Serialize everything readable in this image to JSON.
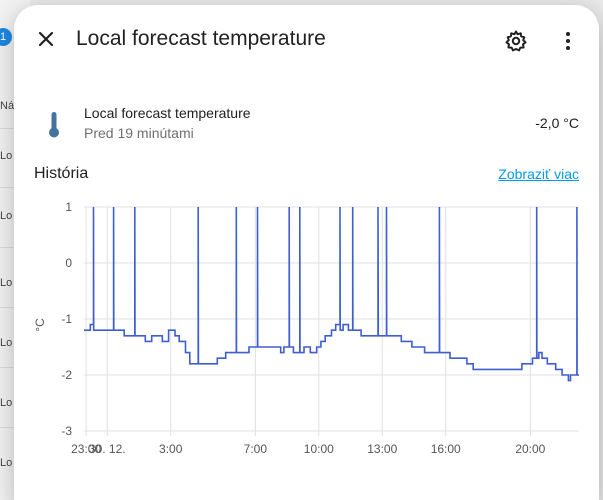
{
  "background": {
    "badge": "1",
    "rows": [
      "Ná",
      "Lo",
      "Lo",
      "Lo",
      "Lo",
      "Lo",
      "Lo",
      "Lo"
    ]
  },
  "dialog": {
    "title": "Local forecast temperature",
    "close_icon": "close-icon",
    "settings_icon": "gear-icon",
    "more_icon": "more-vertical-icon"
  },
  "entity": {
    "name": "Local forecast temperature",
    "last_changed": "Pred 19 minútami",
    "state": "-2,0 °C",
    "icon": "thermometer-icon"
  },
  "history": {
    "title": "História",
    "more_link": "Zobraziť viac"
  },
  "colors": {
    "accent": "#039be5",
    "line": "#3f5fcf",
    "grid": "#e0e0e0"
  },
  "chart_data": {
    "type": "line",
    "ylabel": "°C",
    "ylim": [
      -3,
      1
    ],
    "yticks": [
      1,
      0,
      -1,
      -2,
      -3
    ],
    "xticks": [
      {
        "t": 0.0,
        "label": "23:00"
      },
      {
        "t": 1.0,
        "label": "30. 12."
      },
      {
        "t": 4.0,
        "label": "3:00"
      },
      {
        "t": 8.0,
        "label": "7:00"
      },
      {
        "t": 11.0,
        "label": "10:00"
      },
      {
        "t": 14.0,
        "label": "13:00"
      },
      {
        "t": 17.0,
        "label": "16:00"
      },
      {
        "t": 21.0,
        "label": "20:00"
      }
    ],
    "xlim": [
      -0.1,
      23.3
    ],
    "series": [
      {
        "points": [
          [
            -0.1,
            -1.2
          ],
          [
            0.2,
            -1.2
          ],
          [
            0.2,
            -1.1
          ],
          [
            0.35,
            -1.1
          ],
          [
            0.35,
            1
          ],
          [
            0.36,
            -1.2
          ],
          [
            1.3,
            -1.2
          ],
          [
            1.3,
            1
          ],
          [
            1.31,
            -1.2
          ],
          [
            1.8,
            -1.2
          ],
          [
            1.8,
            -1.3
          ],
          [
            2.3,
            -1.3
          ],
          [
            2.3,
            1
          ],
          [
            2.31,
            -1.3
          ],
          [
            2.8,
            -1.3
          ],
          [
            2.8,
            -1.4
          ],
          [
            3.1,
            -1.4
          ],
          [
            3.1,
            -1.3
          ],
          [
            3.6,
            -1.3
          ],
          [
            3.6,
            -1.4
          ],
          [
            3.9,
            -1.4
          ],
          [
            3.9,
            -1.2
          ],
          [
            4.2,
            -1.2
          ],
          [
            4.2,
            -1.3
          ],
          [
            4.4,
            -1.3
          ],
          [
            4.4,
            -1.4
          ],
          [
            4.7,
            -1.4
          ],
          [
            4.7,
            -1.6
          ],
          [
            4.9,
            -1.6
          ],
          [
            4.9,
            -1.8
          ],
          [
            5.3,
            -1.8
          ],
          [
            5.3,
            1
          ],
          [
            5.31,
            -1.8
          ],
          [
            6.2,
            -1.8
          ],
          [
            6.2,
            -1.7
          ],
          [
            6.6,
            -1.7
          ],
          [
            6.6,
            -1.6
          ],
          [
            7.1,
            -1.6
          ],
          [
            7.1,
            1
          ],
          [
            7.11,
            -1.6
          ],
          [
            7.7,
            -1.6
          ],
          [
            7.7,
            -1.5
          ],
          [
            8.1,
            -1.5
          ],
          [
            8.1,
            1
          ],
          [
            8.11,
            -1.5
          ],
          [
            9.2,
            -1.5
          ],
          [
            9.2,
            -1.6
          ],
          [
            9.35,
            -1.6
          ],
          [
            9.35,
            -1.5
          ],
          [
            9.6,
            -1.5
          ],
          [
            9.6,
            1
          ],
          [
            9.61,
            -1.5
          ],
          [
            9.8,
            -1.5
          ],
          [
            9.8,
            -1.6
          ],
          [
            10.1,
            -1.6
          ],
          [
            10.1,
            1
          ],
          [
            10.11,
            -1.6
          ],
          [
            10.3,
            -1.6
          ],
          [
            10.3,
            -1.5
          ],
          [
            10.6,
            -1.5
          ],
          [
            10.6,
            -1.6
          ],
          [
            10.9,
            -1.6
          ],
          [
            10.9,
            -1.5
          ],
          [
            11.1,
            -1.5
          ],
          [
            11.1,
            -1.4
          ],
          [
            11.3,
            -1.4
          ],
          [
            11.3,
            -1.3
          ],
          [
            11.6,
            -1.3
          ],
          [
            11.6,
            -1.2
          ],
          [
            11.8,
            -1.2
          ],
          [
            11.8,
            -1.1
          ],
          [
            12.0,
            -1.1
          ],
          [
            12.0,
            1
          ],
          [
            12.01,
            -1.2
          ],
          [
            12.15,
            -1.2
          ],
          [
            12.15,
            -1.1
          ],
          [
            12.4,
            -1.1
          ],
          [
            12.4,
            -1.2
          ],
          [
            12.6,
            -1.2
          ],
          [
            12.6,
            1
          ],
          [
            12.61,
            -1.2
          ],
          [
            13.0,
            -1.2
          ],
          [
            13.0,
            -1.3
          ],
          [
            13.8,
            -1.3
          ],
          [
            13.8,
            1
          ],
          [
            13.81,
            -1.3
          ],
          [
            14.2,
            -1.3
          ],
          [
            14.2,
            1
          ],
          [
            14.21,
            -1.3
          ],
          [
            14.9,
            -1.3
          ],
          [
            14.9,
            -1.4
          ],
          [
            15.4,
            -1.4
          ],
          [
            15.4,
            -1.5
          ],
          [
            16.0,
            -1.5
          ],
          [
            16.0,
            -1.6
          ],
          [
            16.7,
            -1.6
          ],
          [
            16.7,
            1
          ],
          [
            16.71,
            -1.6
          ],
          [
            17.2,
            -1.6
          ],
          [
            17.2,
            -1.7
          ],
          [
            18.0,
            -1.7
          ],
          [
            18.0,
            -1.8
          ],
          [
            18.3,
            -1.8
          ],
          [
            18.3,
            -1.9
          ],
          [
            20.6,
            -1.9
          ],
          [
            20.6,
            -1.8
          ],
          [
            21.1,
            -1.8
          ],
          [
            21.1,
            -1.7
          ],
          [
            21.3,
            -1.7
          ],
          [
            21.3,
            1
          ],
          [
            21.31,
            -1.7
          ],
          [
            21.4,
            -1.7
          ],
          [
            21.4,
            -1.6
          ],
          [
            21.55,
            -1.6
          ],
          [
            21.55,
            -1.7
          ],
          [
            21.8,
            -1.7
          ],
          [
            21.8,
            -1.8
          ],
          [
            22.2,
            -1.8
          ],
          [
            22.2,
            -1.9
          ],
          [
            22.5,
            -1.9
          ],
          [
            22.5,
            -2.0
          ],
          [
            22.8,
            -2.0
          ],
          [
            22.8,
            -2.1
          ],
          [
            22.9,
            -2.1
          ],
          [
            22.9,
            -2.0
          ],
          [
            23.2,
            -2.0
          ],
          [
            23.2,
            1
          ],
          [
            23.21,
            -2.0
          ],
          [
            23.3,
            -2.0
          ]
        ]
      }
    ]
  }
}
